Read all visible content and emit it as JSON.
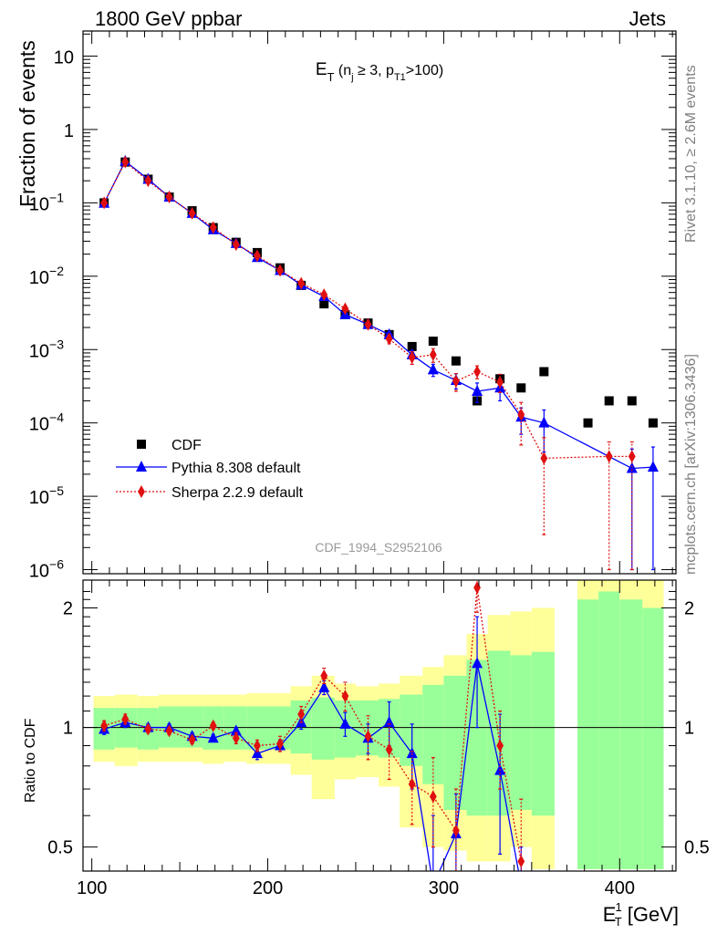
{
  "header": {
    "left": "1800 GeV ppbar",
    "right": "Jets"
  },
  "side_labels": {
    "top": "Rivet 3.1.10, ≥ 2.6M events",
    "bottom": "mcplots.cern.ch [arXiv:1306.3436]"
  },
  "chart_data": {
    "type": "line",
    "title": {
      "main": "E",
      "sub": "T",
      "cond_open": " (n",
      "cond_sub1": "j",
      "cond_mid": " ≥ 3, p",
      "cond_sub2": "T1",
      "cond_close": ">100)"
    },
    "watermark": "CDF_1994_S2952106",
    "xlabel": {
      "main": "E",
      "sup": "1",
      "sub": "T",
      "unit": " [GeV]"
    },
    "xlim": [
      95,
      432
    ],
    "x_ticks": [
      100,
      200,
      300,
      400
    ],
    "top_panel": {
      "ylabel": "Fraction of events",
      "yscale": "log",
      "ylim": [
        8.8e-07,
        22
      ],
      "y_ticks": [
        {
          "value": 10,
          "base": "10",
          "exp": ""
        },
        {
          "value": 1,
          "base": "1",
          "exp": ""
        },
        {
          "value": 0.1,
          "base": "10",
          "exp": "−1"
        },
        {
          "value": 0.01,
          "base": "10",
          "exp": "−2"
        },
        {
          "value": 0.001,
          "base": "10",
          "exp": "−3"
        },
        {
          "value": 0.0001,
          "base": "10",
          "exp": "−4"
        },
        {
          "value": 1e-05,
          "base": "10",
          "exp": "−5"
        },
        {
          "value": 1e-06,
          "base": "10",
          "exp": "−6"
        }
      ]
    },
    "ratio_panel": {
      "ylabel": "Ratio to CDF",
      "yscale": "log",
      "ylim": [
        0.435,
        2.35
      ],
      "y_ticks": [
        {
          "value": 0.5,
          "label": "0.5"
        },
        {
          "value": 1,
          "label": "1"
        },
        {
          "value": 2,
          "label": "2"
        }
      ],
      "bands": [
        {
          "x": [
            101,
            113
          ],
          "green": [
            0.88,
            1.12
          ],
          "yellow": [
            0.82,
            1.2
          ]
        },
        {
          "x": [
            113,
            126
          ],
          "green": [
            0.89,
            1.12
          ],
          "yellow": [
            0.8,
            1.21
          ]
        },
        {
          "x": [
            126,
            138
          ],
          "green": [
            0.88,
            1.12
          ],
          "yellow": [
            0.82,
            1.2
          ]
        },
        {
          "x": [
            138,
            151
          ],
          "green": [
            0.89,
            1.13
          ],
          "yellow": [
            0.82,
            1.21
          ]
        },
        {
          "x": [
            151,
            163
          ],
          "green": [
            0.89,
            1.13
          ],
          "yellow": [
            0.82,
            1.21
          ]
        },
        {
          "x": [
            163,
            175
          ],
          "green": [
            0.88,
            1.13
          ],
          "yellow": [
            0.81,
            1.21
          ]
        },
        {
          "x": [
            175,
            188
          ],
          "green": [
            0.88,
            1.13
          ],
          "yellow": [
            0.82,
            1.21
          ]
        },
        {
          "x": [
            188,
            200
          ],
          "green": [
            0.88,
            1.13
          ],
          "yellow": [
            0.81,
            1.22
          ]
        },
        {
          "x": [
            200,
            213
          ],
          "green": [
            0.88,
            1.13
          ],
          "yellow": [
            0.81,
            1.22
          ]
        },
        {
          "x": [
            213,
            225
          ],
          "green": [
            0.86,
            1.17
          ],
          "yellow": [
            0.76,
            1.27
          ]
        },
        {
          "x": [
            225,
            238
          ],
          "green": [
            0.83,
            1.19
          ],
          "yellow": [
            0.66,
            1.35
          ]
        },
        {
          "x": [
            238,
            250
          ],
          "green": [
            0.84,
            1.17
          ],
          "yellow": [
            0.74,
            1.29
          ]
        },
        {
          "x": [
            250,
            263
          ],
          "green": [
            0.85,
            1.17
          ],
          "yellow": [
            0.75,
            1.27
          ]
        },
        {
          "x": [
            263,
            275
          ],
          "green": [
            0.84,
            1.18
          ],
          "yellow": [
            0.71,
            1.29
          ]
        },
        {
          "x": [
            275,
            288
          ],
          "green": [
            0.8,
            1.21
          ],
          "yellow": [
            0.56,
            1.35
          ]
        },
        {
          "x": [
            288,
            300
          ],
          "green": [
            0.72,
            1.28
          ],
          "yellow": [
            0.5,
            1.42
          ]
        },
        {
          "x": [
            300,
            313
          ],
          "green": [
            0.62,
            1.35
          ],
          "yellow": [
            0.49,
            1.52
          ]
        },
        {
          "x": [
            313,
            325
          ],
          "green": [
            0.6,
            1.48
          ],
          "yellow": [
            0.46,
            1.72
          ]
        },
        {
          "x": [
            325,
            338
          ],
          "green": [
            0.6,
            1.56
          ],
          "yellow": [
            0.46,
            1.92
          ]
        },
        {
          "x": [
            338,
            350
          ],
          "green": [
            0.62,
            1.52
          ],
          "yellow": [
            0.5,
            1.96
          ]
        },
        {
          "x": [
            350,
            363
          ],
          "green": [
            0.6,
            1.55
          ],
          "yellow": [
            0.44,
            2.0
          ]
        },
        {
          "x": [
            376,
            388
          ],
          "green": [
            0.44,
            2.1
          ],
          "yellow": [
            0.44,
            2.35
          ]
        },
        {
          "x": [
            388,
            400
          ],
          "green": [
            0.44,
            2.2
          ],
          "yellow": [
            0.44,
            2.35
          ]
        },
        {
          "x": [
            400,
            413
          ],
          "green": [
            0.44,
            2.1
          ],
          "yellow": [
            0.44,
            2.35
          ]
        },
        {
          "x": [
            413,
            425
          ],
          "green": [
            0.44,
            2.0
          ],
          "yellow": [
            0.44,
            2.35
          ]
        }
      ]
    },
    "series": [
      {
        "name": "CDF",
        "color": "#000000",
        "marker": "square",
        "x": [
          107,
          119,
          132,
          144,
          157,
          169,
          182,
          194,
          207,
          219,
          232,
          244,
          257,
          269,
          282,
          294,
          307,
          319,
          332,
          344,
          357,
          382,
          394,
          407,
          419
        ],
        "y": [
          0.1,
          0.36,
          0.21,
          0.12,
          0.078,
          0.046,
          0.029,
          0.021,
          0.013,
          0.0075,
          0.0042,
          0.003,
          0.0023,
          0.0016,
          0.0011,
          0.0013,
          0.0007,
          0.0002,
          0.0004,
          0.0003,
          0.0005,
          0.0001,
          0.0002,
          0.0002,
          0.0001
        ]
      },
      {
        "name": "Pythia 8.308 default",
        "color": "#0000ff",
        "marker": "triangle",
        "line": "solid",
        "x": [
          107,
          119,
          132,
          144,
          157,
          169,
          182,
          194,
          207,
          219,
          232,
          244,
          257,
          269,
          282,
          294,
          307,
          319,
          332,
          344,
          357,
          407,
          419
        ],
        "y": [
          0.099,
          0.37,
          0.21,
          0.12,
          0.072,
          0.043,
          0.028,
          0.018,
          0.012,
          0.0076,
          0.0053,
          0.003,
          0.0022,
          0.0016,
          0.00085,
          0.00053,
          0.00038,
          0.00027,
          0.0003,
          0.00012,
          0.0001,
          2.4e-05,
          2.5e-05
        ],
        "err_lo": [
          0,
          0,
          0,
          0,
          0,
          0,
          0,
          0,
          0,
          0,
          0,
          0,
          0,
          0,
          0.00012,
          0.0001,
          9e-05,
          8e-05,
          0.0001,
          5e-05,
          6e-05,
          2.3e-05,
          2.4e-05
        ],
        "err_hi": [
          0,
          0,
          0,
          0,
          0,
          0,
          0,
          0,
          0,
          0,
          0,
          0,
          0,
          0,
          0.00012,
          0.0001,
          9e-05,
          8e-05,
          0.0001,
          4e-05,
          5e-05,
          2e-05,
          2.2e-05
        ],
        "ratio": [
          0.99,
          1.03,
          1.0,
          1.0,
          0.95,
          0.94,
          0.98,
          0.86,
          0.9,
          1.03,
          1.26,
          1.02,
          0.94,
          1.03,
          0.86,
          0.4,
          0.54,
          1.45,
          0.78,
          0.4
        ],
        "ratio_x": [
          107,
          119,
          132,
          144,
          157,
          169,
          182,
          194,
          207,
          219,
          232,
          244,
          257,
          269,
          282,
          294,
          307,
          319,
          332,
          344
        ],
        "ratio_err": [
          0.03,
          0.03,
          0.02,
          0.02,
          0.02,
          0.02,
          0.02,
          0.03,
          0.03,
          0.04,
          0.05,
          0.07,
          0.08,
          0.13,
          0.16,
          0.2,
          0.14,
          0.45,
          0.3,
          0.1
        ]
      },
      {
        "name": "Sherpa 2.2.9 default",
        "color": "#e01010",
        "marker": "diamond",
        "line": "dotted",
        "x": [
          107,
          119,
          132,
          144,
          157,
          169,
          182,
          194,
          207,
          219,
          232,
          244,
          257,
          269,
          282,
          294,
          307,
          319,
          332,
          344,
          357,
          394,
          407
        ],
        "y": [
          0.1,
          0.36,
          0.2,
          0.12,
          0.072,
          0.046,
          0.027,
          0.019,
          0.012,
          0.008,
          0.0056,
          0.0036,
          0.0022,
          0.0014,
          0.00078,
          0.00085,
          0.00037,
          0.0005,
          0.00036,
          0.00013,
          3.3e-05,
          3.5e-05,
          3.5e-05
        ],
        "err_lo": [
          0,
          0,
          0,
          0,
          0,
          0,
          0,
          0,
          0,
          0,
          0,
          0,
          0,
          0.0002,
          0.00015,
          0.00018,
          0.0001,
          0.0001,
          0.0001,
          8e-05,
          3e-05,
          3.4e-05,
          3.4e-05
        ],
        "err_hi": [
          0,
          0,
          0,
          0,
          0,
          0,
          0,
          0,
          0,
          0,
          0,
          0,
          0,
          0.0002,
          0.00015,
          0.00018,
          0.0001,
          0.0001,
          0.0001,
          6e-05,
          3e-05,
          2e-05,
          2e-05
        ],
        "ratio": [
          1.01,
          1.05,
          0.99,
          0.98,
          0.93,
          1.01,
          0.94,
          0.9,
          0.91,
          1.08,
          1.35,
          1.2,
          0.95,
          0.88,
          0.72,
          0.67,
          0.55,
          2.25,
          0.9,
          0.46
        ],
        "ratio_x": [
          107,
          119,
          132,
          144,
          157,
          169,
          182,
          194,
          207,
          219,
          232,
          244,
          257,
          269,
          282,
          294,
          307,
          319,
          332,
          344
        ],
        "ratio_err": [
          0.03,
          0.03,
          0.02,
          0.02,
          0.02,
          0.02,
          0.03,
          0.03,
          0.04,
          0.05,
          0.06,
          0.1,
          0.12,
          0.14,
          0.15,
          0.17,
          0.15,
          0.3,
          0.2,
          0.2
        ]
      }
    ],
    "legend": {
      "placement": "lower-left"
    }
  }
}
